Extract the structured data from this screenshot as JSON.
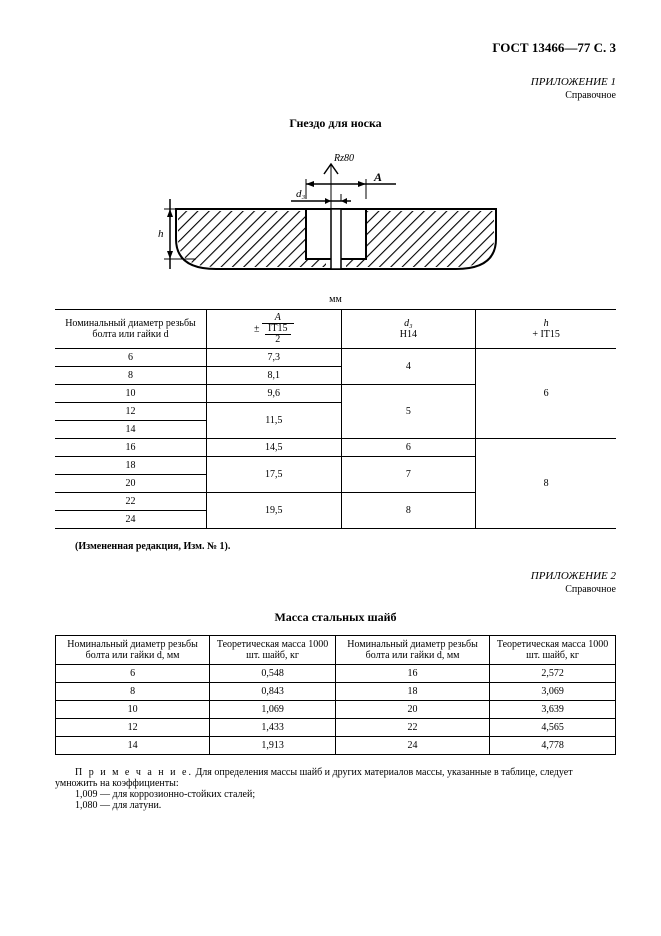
{
  "header": "ГОСТ 13466—77 С. 3",
  "appendix1": {
    "title": "ПРИЛОЖЕНИЕ 1",
    "sub": "Справочное"
  },
  "figure": {
    "title": "Гнездо для носка",
    "labels": {
      "roughness": "Rz80",
      "A": "A",
      "d3": "d₃",
      "h": "h"
    }
  },
  "unit": "мм",
  "table1": {
    "headers": {
      "c1": "Номинальный диаметр резьбы болта или гайки d",
      "c2_prefix": "±",
      "c2_top": "A",
      "c2_mid": "IT15",
      "c2_bot": "2",
      "c3_top": "d₃",
      "c3_bot": "H14",
      "c4_top": "h",
      "c4_bot": "+ IT15"
    },
    "rows": [
      {
        "d": "6",
        "A": "7,3"
      },
      {
        "d": "8",
        "A": "8,1"
      },
      {
        "d": "10",
        "A": "9,6"
      },
      {
        "d": "12",
        "A": "11,5"
      },
      {
        "d": "14",
        "A": ""
      },
      {
        "d": "16",
        "A": "14,5"
      },
      {
        "d": "18",
        "A": "17,5"
      },
      {
        "d": "20",
        "A": ""
      },
      {
        "d": "22",
        "A": "19,5"
      },
      {
        "d": "24",
        "A": ""
      }
    ],
    "d3_groups": [
      "4",
      "5",
      "6",
      "7",
      "8"
    ],
    "h_groups": [
      "6",
      "8"
    ]
  },
  "note1": "(Измененная редакция, Изм. № 1).",
  "appendix2": {
    "title": "ПРИЛОЖЕНИЕ 2",
    "sub": "Справочное"
  },
  "table2title": "Масса стальных шайб",
  "table2": {
    "headers": {
      "c1": "Номинальный диаметр резьбы болта или гайки d, мм",
      "c2": "Теоретическая масса 1000 шт. шайб, кг",
      "c3": "Номинальный диаметр резьбы болта или гайки d, мм",
      "c4": "Теоретическая масса 1000 шт. шайб, кг"
    },
    "rows": [
      {
        "a": "6",
        "b": "0,548",
        "c": "16",
        "d": "2,572"
      },
      {
        "a": "8",
        "b": "0,843",
        "c": "18",
        "d": "3,069"
      },
      {
        "a": "10",
        "b": "1,069",
        "c": "20",
        "d": "3,639"
      },
      {
        "a": "12",
        "b": "1,433",
        "c": "22",
        "d": "4,565"
      },
      {
        "a": "14",
        "b": "1,913",
        "c": "24",
        "d": "4,778"
      }
    ]
  },
  "note2": {
    "line1_prefix": "П р и м е ч а н и е.",
    "line1": " Для определения массы шайб и других материалов массы, указанные в таблице, следует умножить на коэффициенты:",
    "line2": "1,009 — для коррозионно-стойких сталей;",
    "line3": "1,080 — для латуни."
  }
}
